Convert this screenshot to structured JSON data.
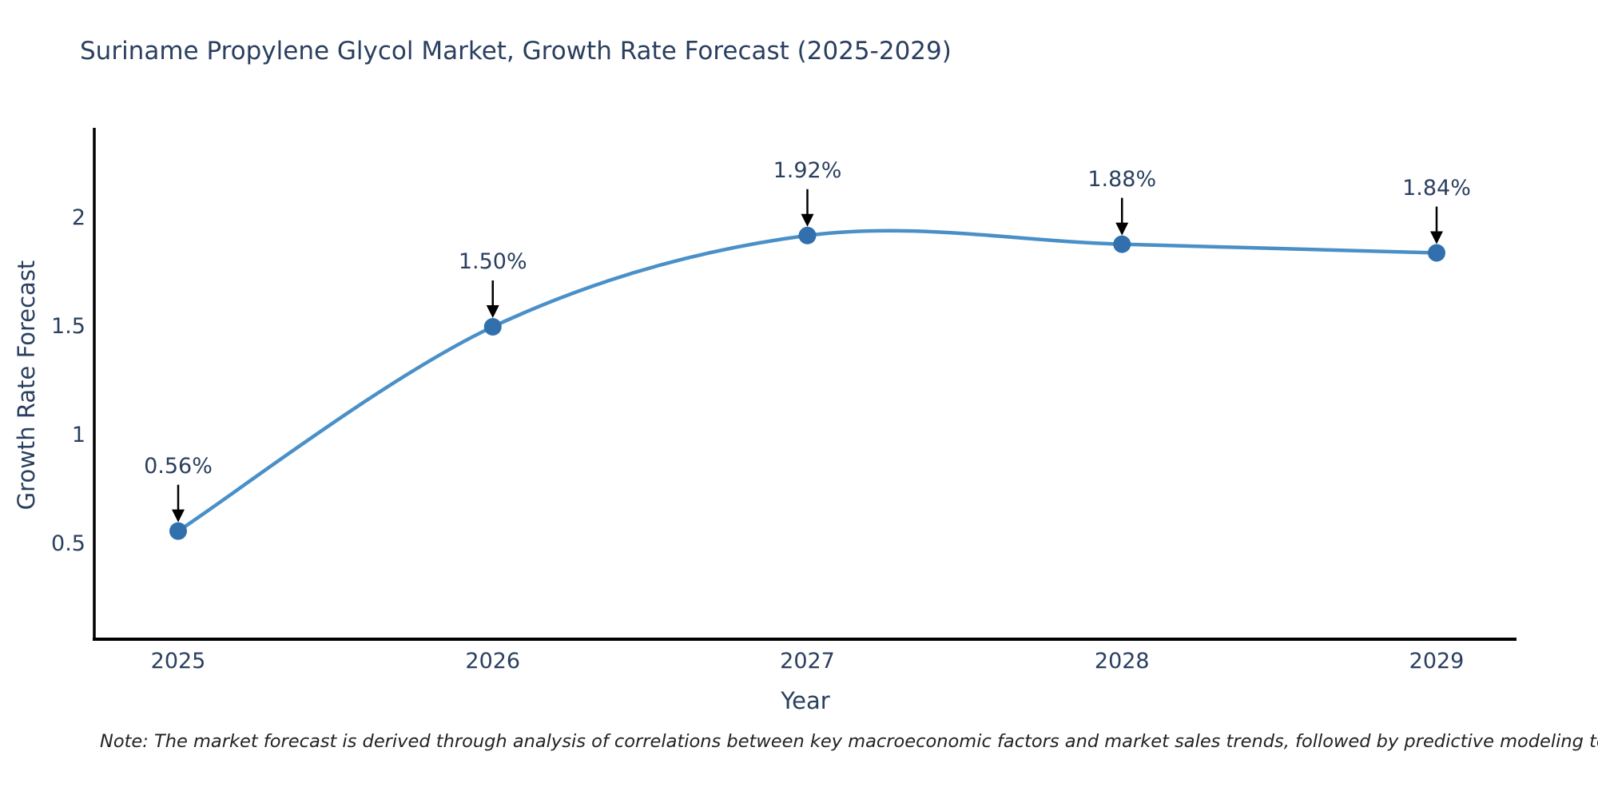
{
  "page": {
    "background": "#ffffff"
  },
  "note": "Note: The market forecast is derived through analysis of correlations between key macroeconomic factors and market sales trends, followed by predictive modeling to project future sales",
  "chart_data": {
    "type": "line",
    "title": "Suriname Propylene Glycol Market, Growth Rate Forecast (2025-2029)",
    "xlabel": "Year",
    "ylabel": "Growth Rate Forecast",
    "x": [
      2025,
      2026,
      2027,
      2028,
      2029
    ],
    "categories": [
      "2025",
      "2026",
      "2027",
      "2028",
      "2029"
    ],
    "values": [
      0.56,
      1.5,
      1.92,
      1.88,
      1.84
    ],
    "point_labels": [
      "0.56%",
      "1.50%",
      "1.92%",
      "1.88%",
      "1.84%"
    ],
    "ytick_values": [
      0.5,
      1,
      1.5,
      2
    ],
    "ytick_labels": [
      "0.5",
      "1",
      "1.5",
      "2"
    ],
    "ylim": [
      0.06,
      2.42
    ],
    "xlim": [
      2024.73,
      2029.25
    ],
    "grid": false,
    "legend_position": "none",
    "line_shape": "spline",
    "annotation_arrows": true,
    "colors": {
      "line": "#4a90c8",
      "marker": "#3170ad",
      "arrow": "#000000",
      "axis_line": "#000000",
      "text": "#2a3f5f",
      "note_text": "#222222",
      "background": "#ffffff"
    }
  }
}
